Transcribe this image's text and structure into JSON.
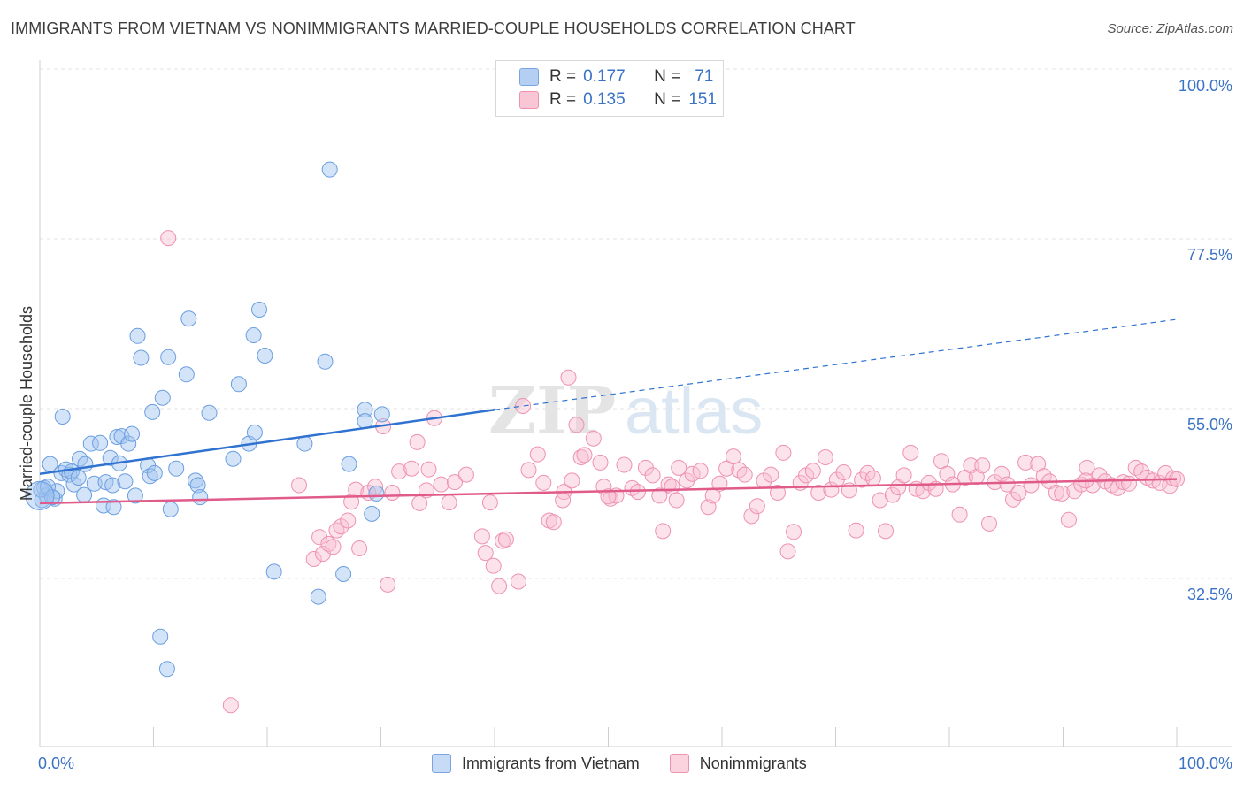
{
  "title": "IMMIGRANTS FROM VIETNAM VS NONIMMIGRANTS MARRIED-COUPLE HOUSEHOLDS CORRELATION CHART",
  "source": "Source: ZipAtlas.com",
  "watermark": {
    "zip": "ZIP",
    "atlas": "atlas"
  },
  "legend": {
    "r_label": "R =",
    "n_label": "N =",
    "rows": [
      {
        "r": "0.177",
        "n": "71",
        "color": "#b5cff3",
        "border": "#7aa5e0"
      },
      {
        "r": "0.135",
        "n": "151",
        "color": "#f9c6d6",
        "border": "#ee92b0"
      }
    ]
  },
  "bottom_legend": [
    {
      "label": "Immigrants from Vietnam",
      "color": "#c7daf6",
      "border": "#7aa5e0"
    },
    {
      "label": "Nonimmigrants",
      "color": "#fbd3df",
      "border": "#ee92b0"
    }
  ],
  "chart_data": {
    "type": "scatter",
    "title": "IMMIGRANTS FROM VIETNAM VS NONIMMIGRANTS MARRIED-COUPLE HOUSEHOLDS CORRELATION CHART",
    "xlabel": "",
    "ylabel": "Married-couple Households",
    "xlim": [
      0,
      100
    ],
    "ylim": [
      12,
      104
    ],
    "x_tick_labels": [
      "0.0%",
      "100.0%"
    ],
    "y_ticks": [
      {
        "value": 32.5,
        "label": "32.5%"
      },
      {
        "value": 55.0,
        "label": "55.0%"
      },
      {
        "value": 77.5,
        "label": "77.5%"
      },
      {
        "value": 100.0,
        "label": "100.0%"
      }
    ],
    "series": [
      {
        "name": "Immigrants from Vietnam",
        "color": "#6a9ee0",
        "fill": "rgba(160,196,240,0.45)",
        "trend": {
          "x": [
            0,
            40
          ],
          "y": [
            48.5,
            57.0
          ],
          "dash_x": [
            40,
            100
          ],
          "dash_y": [
            57.0,
            69.0
          ],
          "color": "#2f72d0"
        },
        "points": [
          [
            0.2,
            45.0
          ],
          [
            0.4,
            46.6
          ],
          [
            0.6,
            45.6
          ],
          [
            0.9,
            49.8
          ],
          [
            1.3,
            45.2
          ],
          [
            1.5,
            46.2
          ],
          [
            1.9,
            48.6
          ],
          [
            2.0,
            56.1
          ],
          [
            2.3,
            49.1
          ],
          [
            2.6,
            48.4
          ],
          [
            3.0,
            47.1
          ],
          [
            3.5,
            50.5
          ],
          [
            3.9,
            45.7
          ],
          [
            4.0,
            49.8
          ],
          [
            4.5,
            52.5
          ],
          [
            4.8,
            47.2
          ],
          [
            5.3,
            52.6
          ],
          [
            5.6,
            44.3
          ],
          [
            5.8,
            47.4
          ],
          [
            6.2,
            50.6
          ],
          [
            6.4,
            47.0
          ],
          [
            6.5,
            44.1
          ],
          [
            6.8,
            53.4
          ],
          [
            7.2,
            53.5
          ],
          [
            7.5,
            47.5
          ],
          [
            7.8,
            52.5
          ],
          [
            8.1,
            53.8
          ],
          [
            8.4,
            45.6
          ],
          [
            8.6,
            66.8
          ],
          [
            8.9,
            63.9
          ],
          [
            9.5,
            49.6
          ],
          [
            9.7,
            48.2
          ],
          [
            9.9,
            56.7
          ],
          [
            10.1,
            48.6
          ],
          [
            10.8,
            58.6
          ],
          [
            11.3,
            64.0
          ],
          [
            11.5,
            43.8
          ],
          [
            12.0,
            49.2
          ],
          [
            12.9,
            61.7
          ],
          [
            13.1,
            69.1
          ],
          [
            13.7,
            47.6
          ],
          [
            13.9,
            47.0
          ],
          [
            14.1,
            45.4
          ],
          [
            14.9,
            56.6
          ],
          [
            17.0,
            50.5
          ],
          [
            17.5,
            60.4
          ],
          [
            18.4,
            52.5
          ],
          [
            18.8,
            66.9
          ],
          [
            18.9,
            54.0
          ],
          [
            19.3,
            70.3
          ],
          [
            19.8,
            64.2
          ],
          [
            20.6,
            35.5
          ],
          [
            23.3,
            52.5
          ],
          [
            24.5,
            32.2
          ],
          [
            25.1,
            63.4
          ],
          [
            25.5,
            88.9
          ],
          [
            26.7,
            35.2
          ],
          [
            27.2,
            49.8
          ],
          [
            28.6,
            57.0
          ],
          [
            28.6,
            55.5
          ],
          [
            29.2,
            43.2
          ],
          [
            29.6,
            45.9
          ],
          [
            30.1,
            56.4
          ],
          [
            10.6,
            26.9
          ],
          [
            11.2,
            22.6
          ],
          [
            0.1,
            46.4
          ],
          [
            0.7,
            46.8
          ],
          [
            1.1,
            45.4
          ],
          [
            2.8,
            48.8
          ],
          [
            3.4,
            48.0
          ],
          [
            7.0,
            49.9
          ]
        ]
      },
      {
        "name": "Nonimmigrants",
        "color": "#ee92b0",
        "fill": "rgba(248,190,210,0.45)",
        "trend": {
          "x": [
            0,
            100
          ],
          "y": [
            44.6,
            47.8
          ],
          "color": "#e05a8a"
        },
        "points": [
          [
            11.3,
            79.8
          ],
          [
            16.8,
            17.8
          ],
          [
            22.8,
            47.0
          ],
          [
            24.1,
            37.2
          ],
          [
            24.6,
            40.1
          ],
          [
            24.9,
            37.9
          ],
          [
            25.4,
            39.2
          ],
          [
            25.8,
            38.8
          ],
          [
            26.1,
            41.0
          ],
          [
            26.5,
            41.5
          ],
          [
            27.1,
            42.3
          ],
          [
            27.4,
            44.8
          ],
          [
            27.8,
            46.4
          ],
          [
            28.1,
            38.6
          ],
          [
            28.9,
            46.0
          ],
          [
            29.5,
            46.8
          ],
          [
            30.2,
            54.8
          ],
          [
            30.6,
            33.8
          ],
          [
            31.0,
            46.0
          ],
          [
            31.6,
            48.8
          ],
          [
            32.7,
            49.2
          ],
          [
            33.2,
            52.7
          ],
          [
            33.4,
            44.6
          ],
          [
            34.2,
            49.1
          ],
          [
            34.7,
            55.9
          ],
          [
            35.3,
            47.1
          ],
          [
            36.0,
            44.7
          ],
          [
            36.5,
            47.4
          ],
          [
            37.5,
            48.4
          ],
          [
            38.9,
            40.2
          ],
          [
            39.2,
            38.0
          ],
          [
            39.6,
            44.7
          ],
          [
            39.9,
            36.3
          ],
          [
            40.4,
            33.6
          ],
          [
            40.7,
            39.6
          ],
          [
            41.0,
            39.8
          ],
          [
            42.1,
            34.2
          ],
          [
            42.5,
            57.5
          ],
          [
            43.8,
            51.1
          ],
          [
            44.3,
            47.3
          ],
          [
            44.8,
            42.3
          ],
          [
            45.2,
            42.1
          ],
          [
            46.1,
            46.1
          ],
          [
            46.5,
            61.3
          ],
          [
            46.8,
            47.6
          ],
          [
            47.2,
            55.0
          ],
          [
            47.6,
            50.7
          ],
          [
            47.9,
            51.0
          ],
          [
            48.7,
            53.2
          ],
          [
            49.3,
            50.0
          ],
          [
            49.6,
            46.8
          ],
          [
            50.2,
            45.2
          ],
          [
            50.7,
            45.6
          ],
          [
            51.4,
            49.7
          ],
          [
            52.1,
            46.6
          ],
          [
            52.6,
            46.1
          ],
          [
            53.3,
            49.3
          ],
          [
            53.9,
            48.3
          ],
          [
            54.5,
            45.6
          ],
          [
            54.8,
            40.9
          ],
          [
            55.3,
            47.1
          ],
          [
            55.6,
            46.8
          ],
          [
            56.2,
            49.3
          ],
          [
            56.9,
            47.6
          ],
          [
            57.4,
            48.5
          ],
          [
            58.1,
            48.9
          ],
          [
            58.8,
            44.1
          ],
          [
            59.2,
            45.6
          ],
          [
            59.8,
            47.2
          ],
          [
            60.4,
            49.2
          ],
          [
            61.0,
            50.8
          ],
          [
            61.5,
            49.0
          ],
          [
            62.0,
            48.4
          ],
          [
            62.6,
            42.9
          ],
          [
            63.1,
            44.2
          ],
          [
            63.7,
            47.6
          ],
          [
            64.3,
            48.4
          ],
          [
            64.9,
            46.0
          ],
          [
            65.4,
            51.3
          ],
          [
            65.8,
            38.2
          ],
          [
            66.3,
            40.8
          ],
          [
            66.9,
            47.3
          ],
          [
            67.4,
            48.3
          ],
          [
            68.0,
            48.9
          ],
          [
            68.5,
            46.0
          ],
          [
            69.1,
            50.7
          ],
          [
            69.6,
            46.4
          ],
          [
            70.1,
            47.7
          ],
          [
            70.7,
            48.7
          ],
          [
            71.2,
            46.3
          ],
          [
            71.8,
            41.0
          ],
          [
            72.3,
            47.7
          ],
          [
            72.8,
            48.6
          ],
          [
            73.3,
            47.9
          ],
          [
            73.9,
            45.0
          ],
          [
            74.4,
            40.9
          ],
          [
            75.0,
            45.7
          ],
          [
            75.5,
            46.7
          ],
          [
            76.0,
            48.3
          ],
          [
            76.6,
            51.3
          ],
          [
            77.1,
            46.5
          ],
          [
            77.7,
            46.2
          ],
          [
            78.2,
            47.3
          ],
          [
            78.8,
            46.5
          ],
          [
            79.3,
            50.2
          ],
          [
            79.8,
            48.5
          ],
          [
            80.3,
            47.1
          ],
          [
            80.9,
            43.1
          ],
          [
            81.4,
            48.0
          ],
          [
            81.9,
            49.6
          ],
          [
            82.4,
            48.1
          ],
          [
            82.9,
            49.6
          ],
          [
            83.5,
            41.9
          ],
          [
            84.0,
            47.4
          ],
          [
            84.6,
            48.5
          ],
          [
            85.1,
            47.1
          ],
          [
            85.6,
            45.1
          ],
          [
            86.1,
            46.0
          ],
          [
            86.7,
            50.0
          ],
          [
            87.2,
            47.0
          ],
          [
            87.8,
            49.8
          ],
          [
            88.3,
            48.2
          ],
          [
            88.8,
            47.5
          ],
          [
            89.4,
            46.0
          ],
          [
            89.9,
            45.9
          ],
          [
            90.5,
            42.4
          ],
          [
            91.0,
            46.2
          ],
          [
            91.6,
            47.1
          ],
          [
            92.1,
            49.3
          ],
          [
            92.6,
            47.0
          ],
          [
            93.2,
            48.3
          ],
          [
            93.7,
            47.5
          ],
          [
            94.3,
            47.0
          ],
          [
            94.8,
            46.6
          ],
          [
            95.3,
            47.4
          ],
          [
            95.8,
            47.2
          ],
          [
            96.4,
            49.3
          ],
          [
            96.9,
            48.8
          ],
          [
            97.4,
            48.0
          ],
          [
            97.9,
            47.6
          ],
          [
            98.5,
            47.3
          ],
          [
            99.0,
            48.6
          ],
          [
            99.4,
            46.9
          ],
          [
            99.7,
            47.9
          ],
          [
            100.0,
            47.8
          ],
          [
            34.0,
            46.3
          ],
          [
            43.0,
            49.0
          ],
          [
            46.0,
            45.0
          ],
          [
            50.0,
            45.5
          ],
          [
            56.0,
            45.0
          ],
          [
            92.0,
            47.6
          ]
        ]
      }
    ]
  }
}
